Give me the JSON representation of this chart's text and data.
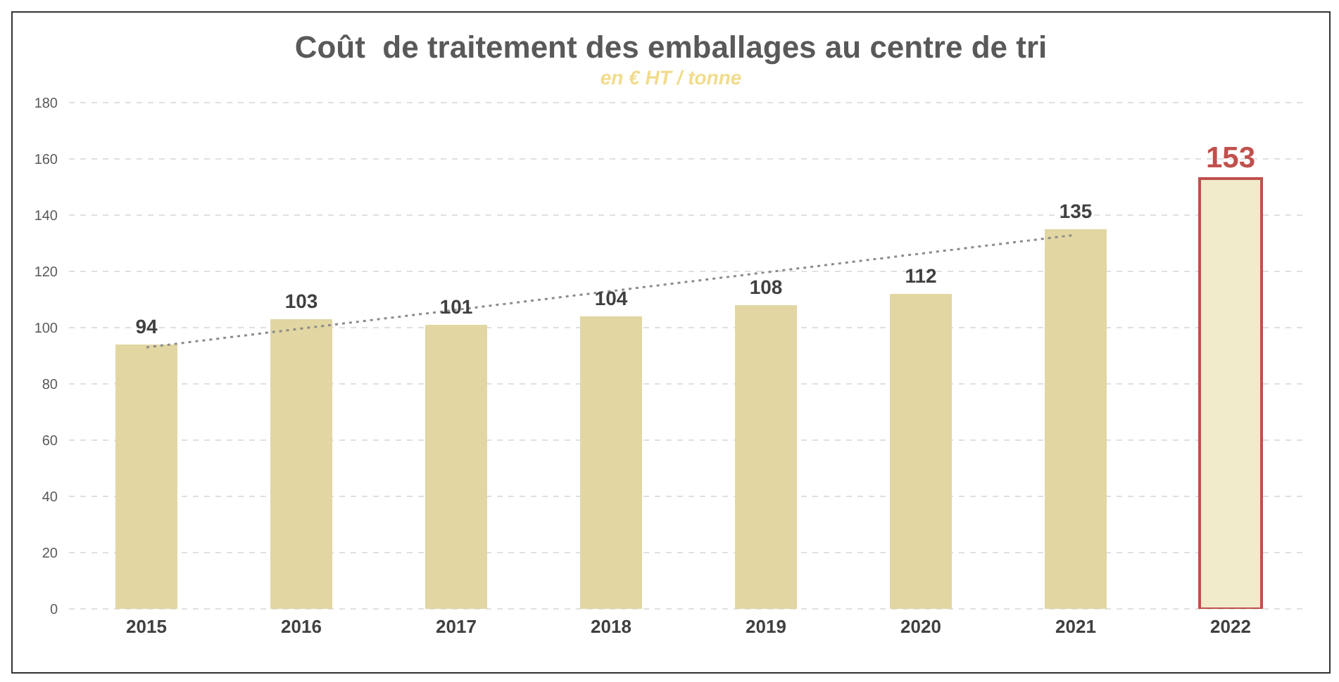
{
  "chart_data": {
    "type": "bar",
    "title": "Coût  de traitement des emballages au centre de tri",
    "subtitle": "en € HT / tonne",
    "categories": [
      "2015",
      "2016",
      "2017",
      "2018",
      "2019",
      "2020",
      "2021",
      "2022"
    ],
    "series": [
      {
        "color": "#e2d6a2",
        "colors": [
          "#e2d6a2",
          "#e2d6a2",
          "#e2d6a2",
          "#e2d6a2",
          "#e2d6a2",
          "#e2d6a2",
          "#e2d6a2",
          "#c0504d"
        ],
        "values": [
          94,
          103,
          101,
          104,
          108,
          112,
          135,
          153
        ],
        "value_labels": [
          "94",
          "103",
          "101",
          "104",
          "108",
          "112",
          "135",
          "153"
        ]
      },
      {
        "type": "line",
        "color": "#8c8c8c",
        "line_style": "dotted",
        "marker": "none",
        "values": [
          93,
          null,
          null,
          null,
          null,
          null,
          133,
          null
        ]
      }
    ],
    "ylim": [
      0,
      180
    ],
    "yticks": [
      0,
      20,
      40,
      60,
      80,
      100,
      120,
      140,
      160,
      180
    ],
    "grid": "y"
  }
}
